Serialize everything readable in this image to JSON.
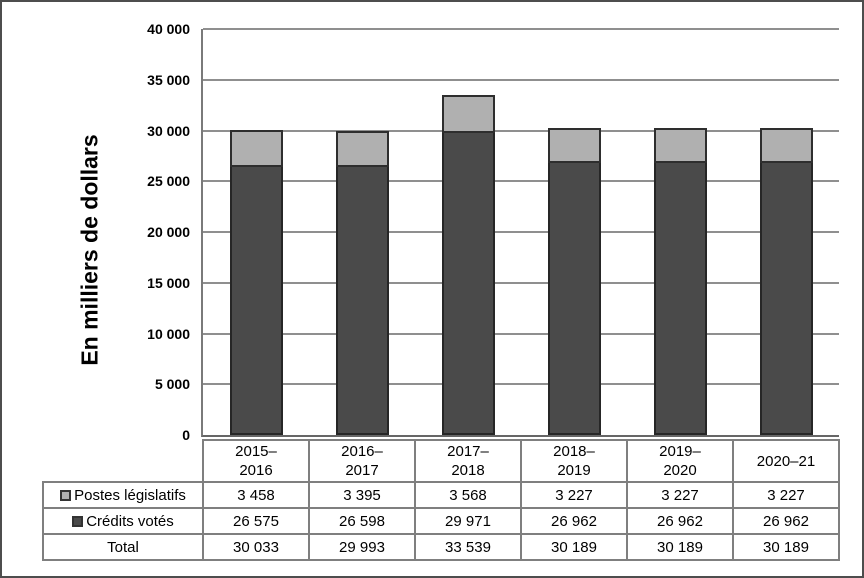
{
  "frame": {
    "border_color": "#4d4d4d",
    "background": "#ffffff"
  },
  "chart_data": {
    "type": "bar",
    "stacked": true,
    "title": "",
    "xlabel": "",
    "ylabel": "En milliers de dollars",
    "ylim": [
      0,
      40000
    ],
    "ytick_step": 5000,
    "grid": true,
    "legend_position": "table-left-column",
    "yticks": [
      {
        "value": 0,
        "label": "0"
      },
      {
        "value": 5000,
        "label": "5 000"
      },
      {
        "value": 10000,
        "label": "10 000"
      },
      {
        "value": 15000,
        "label": "15 000"
      },
      {
        "value": 20000,
        "label": "20 000"
      },
      {
        "value": 25000,
        "label": "25 000"
      },
      {
        "value": 30000,
        "label": "30 000"
      },
      {
        "value": 35000,
        "label": "35 000"
      },
      {
        "value": 40000,
        "label": "40 000"
      }
    ],
    "categories": [
      "2015–\n2016",
      "2016–\n2017",
      "2017–\n2018",
      "2018–\n2019",
      "2019–\n2020",
      "2020–21"
    ],
    "series": [
      {
        "name": "Postes législatifs",
        "slug": "postes-legislatifs",
        "color": "#b0b0b0",
        "border_color": "#2e2e2e",
        "values": [
          3458,
          3395,
          3568,
          3227,
          3227,
          3227
        ],
        "display": [
          "3 458",
          "3 395",
          "3 568",
          "3 227",
          "3 227",
          "3 227"
        ]
      },
      {
        "name": "Crédits votés",
        "slug": "credits-votes",
        "color": "#4a4a4a",
        "border_color": "#262626",
        "values": [
          26575,
          26598,
          29971,
          26962,
          26962,
          26962
        ],
        "display": [
          "26 575",
          "26 598",
          "29 971",
          "26 962",
          "26 962",
          "26 962"
        ]
      }
    ],
    "totals": {
      "label": "Total",
      "values": [
        30033,
        29993,
        33539,
        30189,
        30189,
        30189
      ],
      "display": [
        "30 033",
        "29 993",
        "33 539",
        "30 189",
        "30 189",
        "30 189"
      ]
    }
  }
}
